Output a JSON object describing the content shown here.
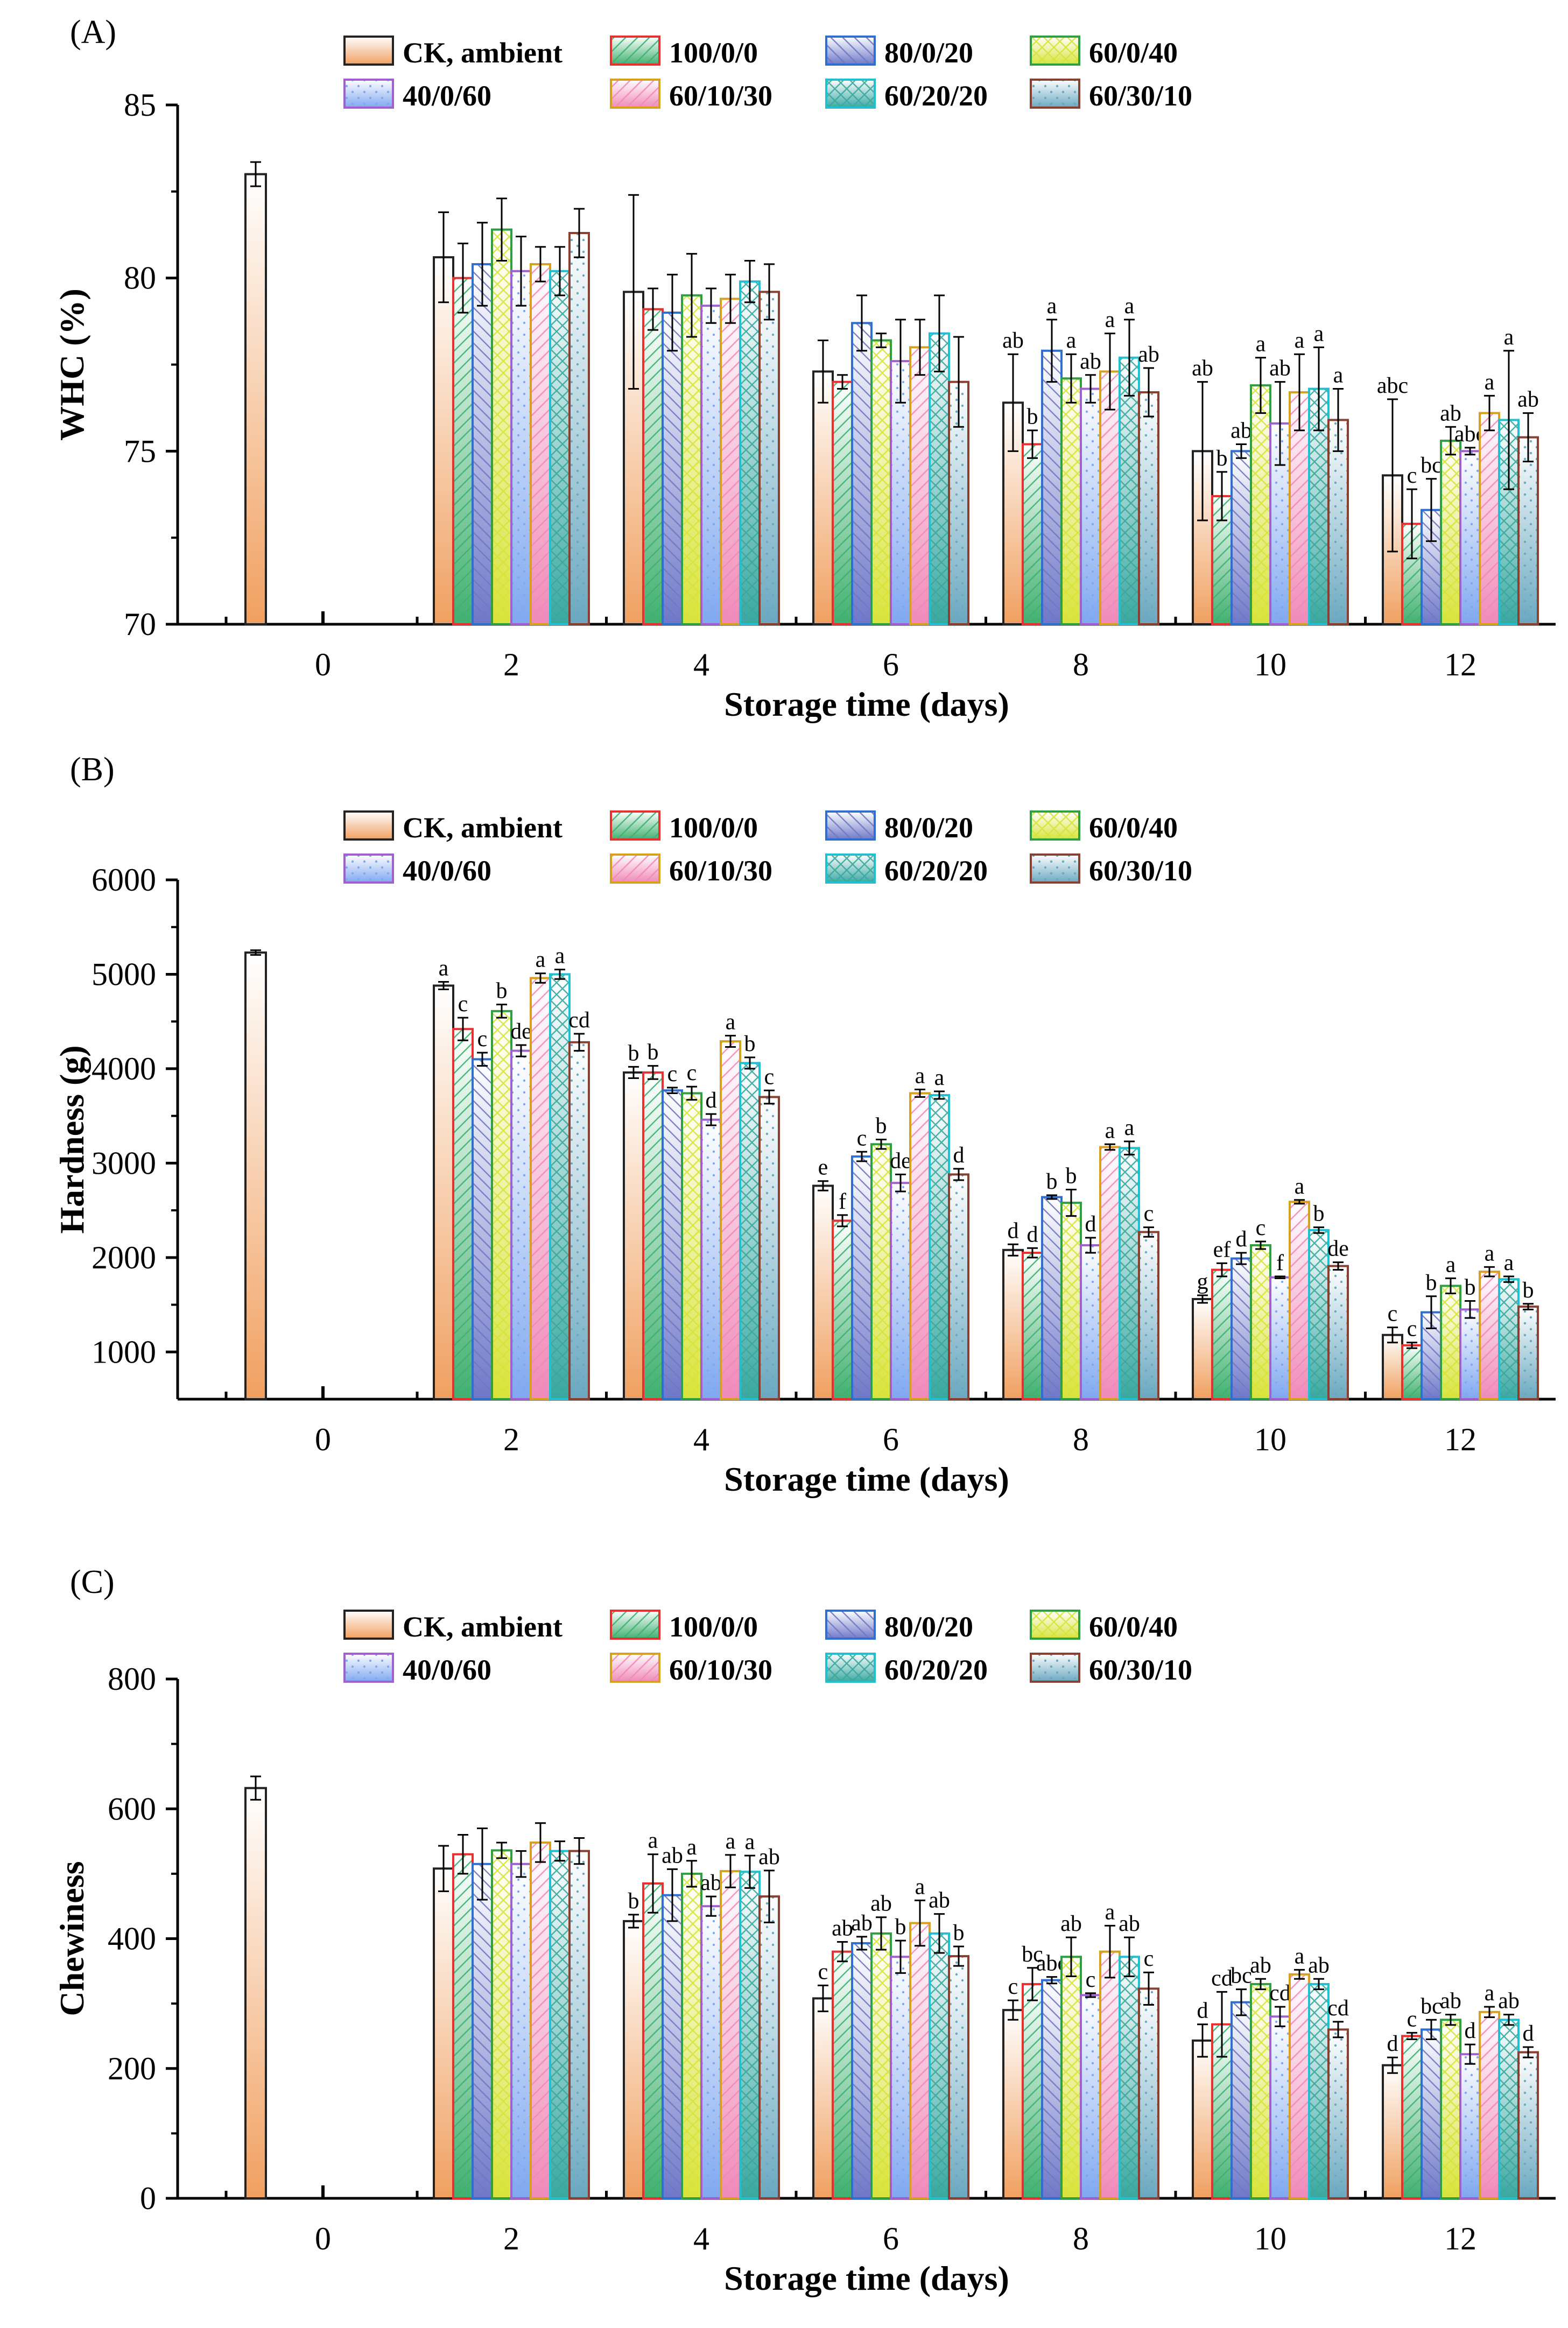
{
  "series": [
    {
      "name": "CK, ambient",
      "color": "#f0a060",
      "stroke": "#222222",
      "pattern": "grad"
    },
    {
      "name": "100/0/0",
      "color": "#40b070",
      "stroke": "#e83030",
      "pattern": "diag"
    },
    {
      "name": "80/0/20",
      "color": "#6f78c8",
      "stroke": "#2f6fd0",
      "pattern": "diag2"
    },
    {
      "name": "60/0/40",
      "color": "#d8e43a",
      "stroke": "#2fa040",
      "pattern": "cross"
    },
    {
      "name": "40/0/60",
      "color": "#80a8f0",
      "stroke": "#a060d0",
      "pattern": "dots"
    },
    {
      "name": "60/10/30",
      "color": "#f08ab8",
      "stroke": "#d8a020",
      "pattern": "diag3"
    },
    {
      "name": "60/20/20",
      "color": "#3aa8a0",
      "stroke": "#20c0d0",
      "pattern": "cross2"
    },
    {
      "name": "60/30/10",
      "color": "#6aa8c0",
      "stroke": "#8a4030",
      "pattern": "dots2"
    }
  ],
  "chart_data": [
    {
      "type": "bar",
      "panel": "(A)",
      "title": "",
      "xlabel": "Storage time (days)",
      "ylabel": "WHC (%)",
      "categories": [
        "0",
        "2",
        "4",
        "6",
        "8",
        "10",
        "12"
      ],
      "ylim": [
        70,
        85
      ],
      "yticks": [
        70,
        75,
        80,
        85
      ],
      "day0": {
        "value": 83.0,
        "error": 0.35
      },
      "groups": [
        {
          "day": "2",
          "values": [
            80.6,
            80.0,
            80.4,
            81.4,
            80.2,
            80.4,
            80.2,
            81.3
          ],
          "errors": [
            1.3,
            1.0,
            1.2,
            0.9,
            1.0,
            0.5,
            0.7,
            0.7
          ],
          "labels": [
            "",
            "",
            "",
            "",
            "",
            "",
            "",
            ""
          ]
        },
        {
          "day": "4",
          "values": [
            79.6,
            79.1,
            79.0,
            79.5,
            79.2,
            79.4,
            79.9,
            79.6
          ],
          "errors": [
            2.8,
            0.6,
            1.1,
            1.2,
            0.5,
            0.7,
            0.6,
            0.8
          ],
          "labels": [
            "",
            "",
            "",
            "",
            "",
            "",
            "",
            ""
          ]
        },
        {
          "day": "6",
          "values": [
            77.3,
            77.0,
            78.7,
            78.2,
            77.6,
            78.0,
            78.4,
            77.0
          ],
          "errors": [
            0.9,
            0.2,
            0.8,
            0.2,
            1.2,
            0.8,
            1.1,
            1.3
          ],
          "labels": [
            "",
            "",
            "",
            "",
            "",
            "",
            "",
            ""
          ]
        },
        {
          "day": "8",
          "values": [
            76.4,
            75.2,
            77.9,
            77.1,
            76.8,
            77.3,
            77.7,
            76.7
          ],
          "errors": [
            1.4,
            0.4,
            0.9,
            0.7,
            0.4,
            1.1,
            1.1,
            0.7
          ],
          "labels": [
            "ab",
            "b",
            "a",
            "a",
            "ab",
            "a",
            "a",
            "ab"
          ]
        },
        {
          "day": "10",
          "values": [
            75.0,
            73.7,
            75.0,
            76.9,
            75.8,
            76.7,
            76.8,
            75.9
          ],
          "errors": [
            2.0,
            0.7,
            0.2,
            0.8,
            1.2,
            1.1,
            1.2,
            0.9
          ],
          "labels": [
            "ab",
            "b",
            "ab",
            "a",
            "ab",
            "a",
            "a",
            "a"
          ]
        },
        {
          "day": "12",
          "values": [
            74.3,
            72.9,
            73.3,
            75.3,
            75.0,
            76.1,
            75.9,
            75.4
          ],
          "errors": [
            2.2,
            1.0,
            0.9,
            0.4,
            0.1,
            0.5,
            2.0,
            0.7
          ],
          "labels": [
            "abc",
            "c",
            "bc",
            "ab",
            "abc",
            "a",
            "a",
            "ab"
          ]
        }
      ]
    },
    {
      "type": "bar",
      "panel": "(B)",
      "title": "",
      "xlabel": "Storage time (days)",
      "ylabel": "Hardness (g)",
      "categories": [
        "0",
        "2",
        "4",
        "6",
        "8",
        "10",
        "12"
      ],
      "ylim": [
        500,
        6000
      ],
      "yticks": [
        1000,
        2000,
        3000,
        4000,
        5000,
        6000
      ],
      "day0": {
        "value": 5230,
        "error": 25
      },
      "groups": [
        {
          "day": "2",
          "values": [
            4880,
            4420,
            4100,
            4610,
            4190,
            4960,
            5000,
            4280
          ],
          "errors": [
            40,
            120,
            70,
            70,
            60,
            50,
            50,
            90
          ],
          "labels": [
            "a",
            "c",
            "c",
            "b",
            "de",
            "a",
            "a",
            "cd"
          ]
        },
        {
          "day": "4",
          "values": [
            3960,
            3960,
            3770,
            3740,
            3460,
            4290,
            4060,
            3700
          ],
          "errors": [
            60,
            70,
            30,
            70,
            60,
            60,
            60,
            70
          ],
          "labels": [
            "b",
            "b",
            "c",
            "c",
            "d",
            "a",
            "b",
            "c"
          ]
        },
        {
          "day": "6",
          "values": [
            2760,
            2390,
            3070,
            3200,
            2790,
            3740,
            3720,
            2880
          ],
          "errors": [
            50,
            60,
            50,
            50,
            90,
            40,
            40,
            60
          ],
          "labels": [
            "e",
            "f",
            "c",
            "b",
            "de",
            "a",
            "a",
            "d"
          ]
        },
        {
          "day": "8",
          "values": [
            2080,
            2050,
            2640,
            2580,
            2130,
            3170,
            3160,
            2270
          ],
          "errors": [
            60,
            50,
            20,
            140,
            80,
            30,
            70,
            50
          ],
          "labels": [
            "d",
            "d",
            "b",
            "b",
            "d",
            "a",
            "a",
            "c"
          ]
        },
        {
          "day": "10",
          "values": [
            1560,
            1870,
            1990,
            2130,
            1790,
            2590,
            2290,
            1910
          ],
          "errors": [
            40,
            70,
            60,
            40,
            10,
            20,
            30,
            40
          ],
          "labels": [
            "g",
            "ef",
            "d",
            "c",
            "f",
            "a",
            "b",
            "de"
          ]
        },
        {
          "day": "12",
          "values": [
            1180,
            1070,
            1420,
            1700,
            1450,
            1850,
            1770,
            1480
          ],
          "errors": [
            80,
            30,
            170,
            80,
            90,
            50,
            30,
            30
          ],
          "labels": [
            "c",
            "c",
            "b",
            "a",
            "b",
            "a",
            "a",
            "b"
          ]
        }
      ]
    },
    {
      "type": "bar",
      "panel": "(C)",
      "title": "",
      "xlabel": "Storage time (days)",
      "ylabel": "Chewiness",
      "categories": [
        "0",
        "2",
        "4",
        "6",
        "8",
        "10",
        "12"
      ],
      "ylim": [
        0,
        800
      ],
      "yticks": [
        0,
        200,
        400,
        600,
        800
      ],
      "day0": {
        "value": 632,
        "error": 18
      },
      "groups": [
        {
          "day": "2",
          "values": [
            508,
            530,
            515,
            536,
            515,
            548,
            535,
            535
          ],
          "errors": [
            35,
            30,
            55,
            12,
            20,
            30,
            15,
            20
          ],
          "labels": [
            "",
            "",
            "",
            "",
            "",
            "",
            "",
            ""
          ]
        },
        {
          "day": "4",
          "values": [
            427,
            485,
            467,
            500,
            450,
            504,
            503,
            465
          ],
          "errors": [
            10,
            45,
            40,
            20,
            15,
            25,
            25,
            40
          ],
          "labels": [
            "b",
            "a",
            "ab",
            "a",
            "ab",
            "a",
            "a",
            "ab"
          ]
        },
        {
          "day": "6",
          "values": [
            308,
            380,
            393,
            408,
            372,
            424,
            408,
            373
          ],
          "errors": [
            20,
            15,
            10,
            25,
            25,
            35,
            30,
            15
          ],
          "labels": [
            "c",
            "ab",
            "ab",
            "ab",
            "b",
            "a",
            "ab",
            "b"
          ]
        },
        {
          "day": "8",
          "values": [
            290,
            330,
            336,
            372,
            313,
            380,
            372,
            323
          ],
          "errors": [
            15,
            25,
            5,
            30,
            3,
            40,
            30,
            25
          ],
          "labels": [
            "c",
            "bc",
            "abc",
            "ab",
            "c",
            "a",
            "ab",
            "c"
          ]
        },
        {
          "day": "10",
          "values": [
            243,
            268,
            302,
            330,
            280,
            345,
            330,
            260
          ],
          "errors": [
            25,
            50,
            20,
            8,
            15,
            7,
            8,
            12
          ],
          "labels": [
            "d",
            "cd",
            "bc",
            "ab",
            "cd",
            "a",
            "ab",
            "cd"
          ]
        },
        {
          "day": "12",
          "values": [
            205,
            250,
            260,
            275,
            222,
            287,
            275,
            225
          ],
          "errors": [
            12,
            5,
            15,
            8,
            15,
            8,
            8,
            8
          ],
          "labels": [
            "d",
            "c",
            "bc",
            "ab",
            "d",
            "a",
            "ab",
            "d"
          ]
        }
      ]
    }
  ]
}
